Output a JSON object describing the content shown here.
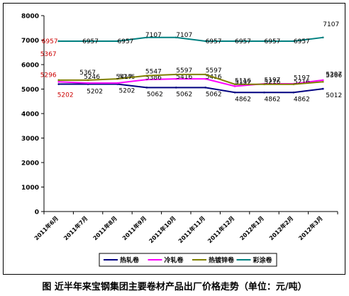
{
  "caption": "图  近半年来宝钢集团主要卷材产品出厂价格走势（单位：元/吨）",
  "chart_data": {
    "type": "line",
    "categories": [
      "2011年6月",
      "2011年7月",
      "2011年8月",
      "2011年9月",
      "2011年10月",
      "2011年11月",
      "2011年12月",
      "2012年1月",
      "2012年2月",
      "2012年3月"
    ],
    "ylim": [
      0,
      8000
    ],
    "yticks": [
      "0",
      "1000",
      "2000",
      "3000",
      "4000",
      "5000",
      "6000",
      "7000",
      "8000"
    ],
    "grid": false,
    "legend_position": "bottom",
    "series": [
      {
        "name": "热轧卷",
        "color": "#000080",
        "values": [
          5202,
          5202,
          5202,
          5062,
          5062,
          5062,
          4862,
          4862,
          4862,
          5012
        ],
        "point_labels": [
          "5202",
          "5202",
          "5202",
          "5062",
          "5062",
          "5062",
          "4862",
          "4862",
          "4862",
          "5012"
        ]
      },
      {
        "name": "冷轧卷",
        "color": "#ff00ff",
        "values": [
          5296,
          5246,
          5246,
          5386,
          5416,
          5416,
          5116,
          5216,
          5216,
          5366
        ],
        "point_labels": [
          "5296",
          "5246",
          "5246",
          "5386",
          "5416",
          "5416",
          "5116",
          "5216",
          "5216",
          "5366"
        ]
      },
      {
        "name": "热镀锌卷",
        "color": "#808000",
        "values": [
          5367,
          5367,
          5417,
          5547,
          5597,
          5597,
          5197,
          5197,
          5197,
          5297
        ],
        "point_labels": [
          "5367",
          "5367",
          "5417",
          "5547",
          "5597",
          "5597",
          "5197",
          "5197",
          "5197",
          "5297"
        ]
      },
      {
        "name": "彩涂卷",
        "color": "#008080",
        "values": [
          6957,
          6957,
          6957,
          7107,
          7107,
          6957,
          6957,
          6957,
          6957,
          7107
        ],
        "point_labels": [
          "6957",
          "6957",
          "6957",
          "7107",
          "7107",
          "6957",
          "6957",
          "6957",
          "6957",
          "7107"
        ]
      }
    ]
  }
}
